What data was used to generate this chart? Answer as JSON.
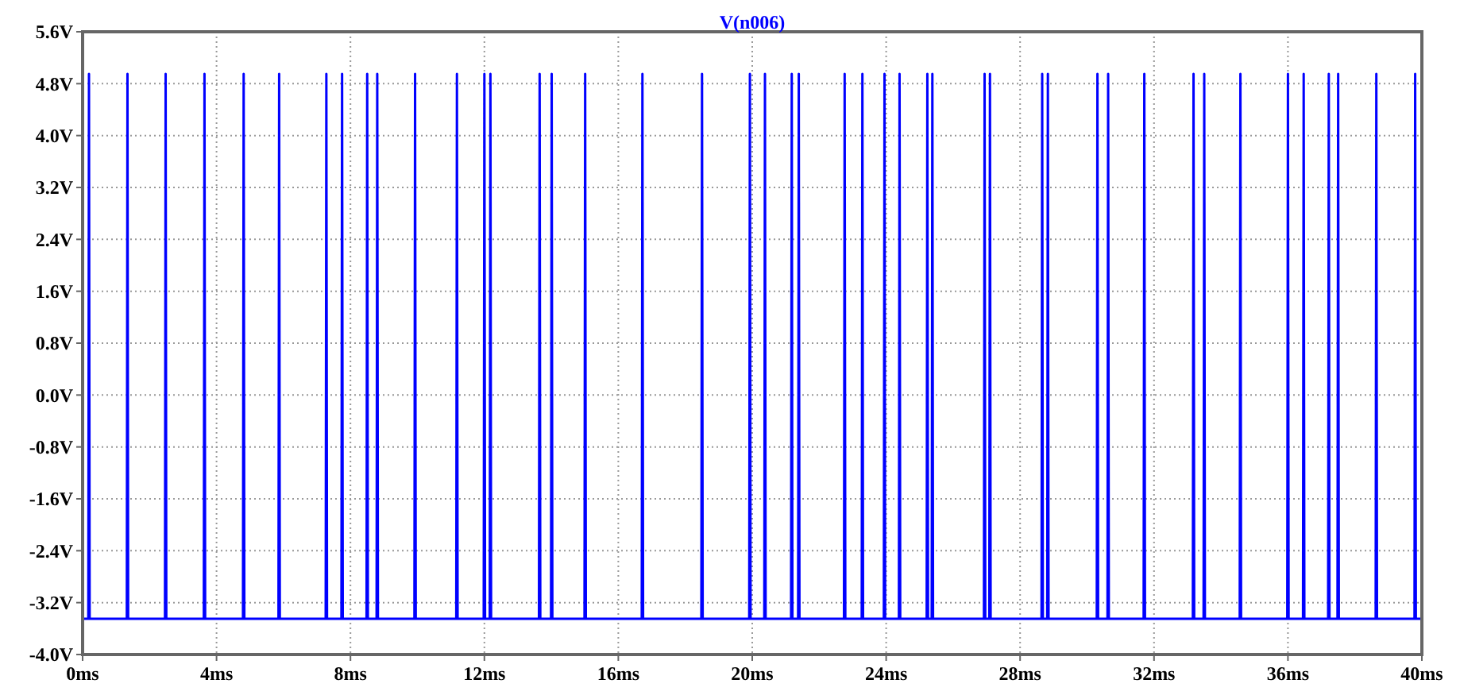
{
  "chart_data": {
    "type": "line",
    "title": "V(n006)",
    "color": "#0000ff",
    "grid": true,
    "x": [
      0,
      0.17,
      0.19,
      0.21,
      1.32,
      1.34,
      1.36,
      2.46,
      2.48,
      2.5,
      3.62,
      3.64,
      3.66,
      4.79,
      4.81,
      4.83,
      5.85,
      5.87,
      5.89,
      7.26,
      7.28,
      7.3,
      7.73,
      7.75,
      7.77,
      8.48,
      8.5,
      8.52,
      8.78,
      8.8,
      8.82,
      9.91,
      9.93,
      9.95,
      11.16,
      11.18,
      11.2,
      11.98,
      12.0,
      12.02,
      12.16,
      12.18,
      12.2,
      13.63,
      13.65,
      13.67,
      13.99,
      14.01,
      14.03,
      14.99,
      15.01,
      15.03,
      16.7,
      16.72,
      16.74,
      18.48,
      18.5,
      18.52,
      19.91,
      19.93,
      19.95,
      20.36,
      20.38,
      20.4,
      21.16,
      21.18,
      21.2,
      21.37,
      21.39,
      21.41,
      22.74,
      22.76,
      22.78,
      23.27,
      23.29,
      23.31,
      23.93,
      23.95,
      23.97,
      24.38,
      24.4,
      24.42,
      25.21,
      25.23,
      25.25,
      25.36,
      25.38,
      25.4,
      26.92,
      26.94,
      26.96,
      27.08,
      27.1,
      27.12,
      28.64,
      28.66,
      28.68,
      28.81,
      28.83,
      28.85,
      30.29,
      30.31,
      30.33,
      30.61,
      30.63,
      30.65,
      31.69,
      31.71,
      31.73,
      33.16,
      33.18,
      33.2,
      33.48,
      33.5,
      33.52,
      34.56,
      34.58,
      34.6,
      35.98,
      36.0,
      36.02,
      36.45,
      36.47,
      36.49,
      37.2,
      37.22,
      37.24,
      37.48,
      37.5,
      37.52,
      38.62,
      38.64,
      38.66,
      39.78,
      39.8,
      39.82,
      40
    ],
    "values": [
      -3.45,
      -3.45,
      4.95,
      -3.45,
      -3.45,
      4.95,
      -3.45,
      -3.45,
      4.95,
      -3.45,
      -3.45,
      4.95,
      -3.45,
      -3.45,
      4.95,
      -3.45,
      -3.45,
      4.95,
      -3.45,
      -3.45,
      4.95,
      -3.45,
      -3.45,
      4.95,
      -3.45,
      -3.45,
      4.95,
      -3.45,
      -3.45,
      4.95,
      -3.45,
      -3.45,
      4.95,
      -3.45,
      -3.45,
      4.95,
      -3.45,
      -3.45,
      4.95,
      -3.45,
      -3.45,
      4.95,
      -3.45,
      -3.45,
      4.95,
      -3.45,
      -3.45,
      4.95,
      -3.45,
      -3.45,
      4.95,
      -3.45,
      -3.45,
      4.95,
      -3.45,
      -3.45,
      4.95,
      -3.45,
      -3.45,
      4.95,
      -3.45,
      -3.45,
      4.95,
      -3.45,
      -3.45,
      4.95,
      -3.45,
      -3.45,
      4.95,
      -3.45,
      -3.45,
      4.95,
      -3.45,
      -3.45,
      4.95,
      -3.45,
      -3.45,
      4.95,
      -3.45,
      -3.45,
      4.95,
      -3.45,
      -3.45,
      4.95,
      -3.45,
      -3.45,
      4.95,
      -3.45,
      -3.45,
      4.95,
      -3.45,
      -3.45,
      4.95,
      -3.45,
      -3.45,
      4.95,
      -3.45,
      -3.45,
      4.95,
      -3.45,
      -3.45,
      4.95,
      -3.45,
      -3.45,
      4.95,
      -3.45,
      -3.45,
      4.95,
      -3.45,
      -3.45,
      4.95,
      -3.45,
      -3.45,
      4.95,
      -3.45,
      -3.45,
      4.95,
      -3.45,
      -3.45,
      4.95,
      -3.45,
      -3.45,
      4.95,
      -3.45,
      -3.45,
      4.95,
      -3.45,
      -3.45,
      4.95,
      -3.45,
      -3.45,
      4.95,
      -3.45,
      -3.45,
      4.95,
      -3.45,
      -3.45
    ],
    "xlim": [
      0,
      40
    ],
    "xticks": [
      {
        "value": 0,
        "label": "0ms"
      },
      {
        "value": 4,
        "label": "4ms"
      },
      {
        "value": 8,
        "label": "8ms"
      },
      {
        "value": 12,
        "label": "12ms"
      },
      {
        "value": 16,
        "label": "16ms"
      },
      {
        "value": 20,
        "label": "20ms"
      },
      {
        "value": 24,
        "label": "24ms"
      },
      {
        "value": 28,
        "label": "28ms"
      },
      {
        "value": 32,
        "label": "32ms"
      },
      {
        "value": 36,
        "label": "36ms"
      },
      {
        "value": 40,
        "label": "40ms"
      }
    ],
    "ylim": [
      -4.0,
      5.6
    ],
    "yticks": [
      {
        "value": -4.0,
        "label": "-4.0V"
      },
      {
        "value": -3.2,
        "label": "-3.2V"
      },
      {
        "value": -2.4,
        "label": "-2.4V"
      },
      {
        "value": -1.6,
        "label": "-1.6V"
      },
      {
        "value": -0.8,
        "label": "-0.8V"
      },
      {
        "value": 0,
        "label": "0.0V"
      },
      {
        "value": 0.8,
        "label": "0.8V"
      },
      {
        "value": 1.6,
        "label": "1.6V"
      },
      {
        "value": 2.4,
        "label": "2.4V"
      },
      {
        "value": 3.2,
        "label": "3.2V"
      },
      {
        "value": 4.0,
        "label": "4.0V"
      },
      {
        "value": 4.8,
        "label": "4.8V"
      },
      {
        "value": 5.6,
        "label": "5.6V"
      }
    ]
  }
}
